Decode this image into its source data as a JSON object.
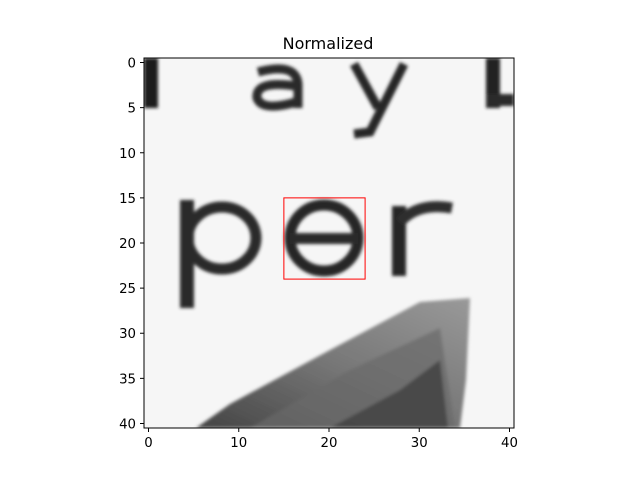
{
  "chart_data": {
    "type": "heatmap",
    "title": "Normalized",
    "colormap": "gray",
    "x_ticks": [
      0,
      10,
      20,
      30,
      40
    ],
    "y_ticks": [
      0,
      5,
      10,
      15,
      20,
      25,
      30,
      35,
      40
    ],
    "xlim": [
      -0.5,
      40.5
    ],
    "ylim": [
      40.5,
      -0.5
    ],
    "image_size": [
      41,
      41
    ],
    "image_content": "grayscale crop of printed text: top row partial word 'lay l', middle row 'per', diagonal dark shape bottom right",
    "highlight_box": {
      "color": "#ff0000",
      "x_range": [
        15,
        24
      ],
      "y_range": [
        15,
        24
      ]
    }
  }
}
